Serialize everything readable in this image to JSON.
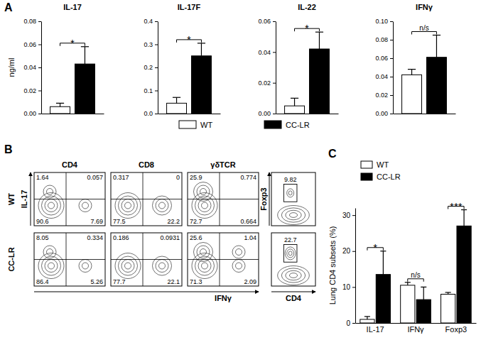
{
  "chart_data": [
    {
      "type": "bar",
      "panel": "A",
      "title": "IL-17",
      "y_label": "ng/ml",
      "categories": [
        null
      ],
      "series": [
        {
          "color": "#ffffff",
          "values": [
            0.006
          ],
          "errors": [
            0.003
          ]
        },
        {
          "color": "#000000",
          "values": [
            0.043
          ],
          "errors": [
            0.015
          ]
        }
      ],
      "significance": [
        "*"
      ],
      "ylim": [
        0,
        0.08
      ],
      "yticks": [
        {
          "value": 0,
          "label": "0.00"
        },
        0.02,
        0.04,
        0.06,
        0.08
      ]
    },
    {
      "type": "bar",
      "title": "IL-17F",
      "categories": [
        null
      ],
      "series": [
        {
          "name": "WT",
          "color": "#ffffff",
          "values": [
            0.045
          ],
          "errors": [
            0.025
          ]
        },
        {
          "name": "CC-LR",
          "color": "#000000",
          "values": [
            0.25
          ],
          "errors": [
            0.055
          ]
        }
      ],
      "significance": [
        "*"
      ],
      "ylim": [
        0,
        0.4
      ],
      "yticks": [
        {
          "value": 0,
          "label": "0.0"
        },
        0.1,
        0.2,
        0.3,
        0.4
      ],
      "legend": "bottom"
    },
    {
      "type": "bar",
      "title": "IL-22",
      "categories": [
        null
      ],
      "series": [
        {
          "color": "#ffffff",
          "values": [
            0.005
          ],
          "errors": [
            0.005
          ]
        },
        {
          "color": "#000000",
          "values": [
            0.042
          ],
          "errors": [
            0.011
          ]
        }
      ],
      "significance": [
        "*"
      ],
      "ylim": [
        0,
        0.06
      ],
      "yticks": [
        {
          "value": 0,
          "label": "0.00"
        },
        0.02,
        0.04,
        0.06
      ]
    },
    {
      "type": "bar",
      "title": "IFNγ",
      "categories": [
        null
      ],
      "series": [
        {
          "color": "#ffffff",
          "values": [
            0.042
          ],
          "errors": [
            0.006
          ]
        },
        {
          "color": "#000000",
          "values": [
            0.061
          ],
          "errors": [
            0.024
          ]
        }
      ],
      "significance": [
        "n/s"
      ],
      "ylim": [
        0,
        0.1
      ],
      "yticks": [
        {
          "value": 0,
          "label": "0.00"
        },
        0.02,
        0.04,
        0.06,
        0.08,
        {
          "value": 0.1,
          "label": "0.10"
        }
      ]
    },
    {
      "type": "flow_cytometry",
      "panel": "B",
      "columns": [
        "CD4",
        "CD8",
        "γδTCR"
      ],
      "rows": [
        "WT",
        "CC-LR"
      ],
      "x_label": "IFNγ",
      "y_label": "IL-17",
      "quadrants": [
        [
          [
            1.64,
            0.057,
            90.6,
            7.69
          ],
          [
            0.317,
            0,
            77.5,
            22.2
          ],
          [
            25.9,
            0.774,
            72.7,
            0.664
          ]
        ],
        [
          [
            8.05,
            0.334,
            86.4,
            5.26
          ],
          [
            0.186,
            0.0931,
            77.7,
            22.1
          ],
          [
            25.6,
            1.04,
            71.3,
            2.09
          ]
        ]
      ]
    },
    {
      "type": "flow_cytometry",
      "x_label": "CD4",
      "y_label": "Foxp3",
      "gates": [
        9.82,
        22.7
      ]
    },
    {
      "type": "bar",
      "panel": "C",
      "y_label": "Lung CD4 subsets (%)",
      "categories": [
        "IL-17",
        "IFNγ",
        "Foxp3"
      ],
      "series": [
        {
          "name": "WT",
          "color": "#ffffff",
          "values": [
            1.0,
            10.5,
            8.0
          ],
          "errors": [
            0.8,
            0.8,
            0.5
          ]
        },
        {
          "name": "CC-LR",
          "color": "#000000",
          "values": [
            13.5,
            6.5,
            27.0
          ],
          "errors": [
            6.5,
            3.5,
            4.5
          ]
        }
      ],
      "significance": [
        "*",
        "n/s",
        "***"
      ],
      "ylim": [
        0,
        32
      ],
      "yticks": [
        0,
        10,
        20,
        30
      ],
      "legend": "top-left"
    }
  ]
}
